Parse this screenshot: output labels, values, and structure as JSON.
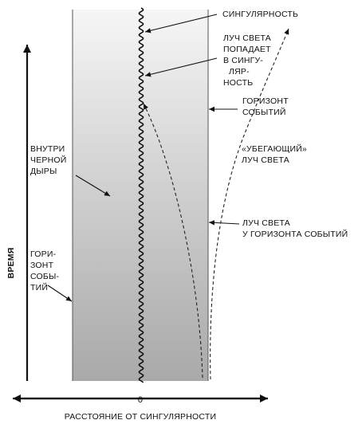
{
  "labels": {
    "singularity": "СИНГУЛЯРНОСТЬ",
    "light_into_singularity": [
      "ЛУЧ СВЕТА",
      "ПОПАДАЕТ",
      "В СИНГУ-",
      "ЛЯР-",
      "НОСТЬ"
    ],
    "event_horizon_right": [
      "ГОРИЗОНТ",
      "СОБЫТИЙ"
    ],
    "escaping_ray": [
      "«УБЕГАЮЩИЙ»",
      "ЛУЧ СВЕТА"
    ],
    "ray_at_horizon": [
      "ЛУЧ СВЕТА",
      "У ГОРИЗОНТА СОБЫТИЙ"
    ],
    "inside_black_hole": [
      "ВНУТРИ",
      "ЧЕРНОЙ",
      "ДЫРЫ"
    ],
    "event_horizon_left": [
      "ГОРИ-",
      "ЗОНТ",
      "СОБЫ-",
      "ТИЙ"
    ],
    "time_axis": "ВРЕМЯ",
    "zero": "0",
    "distance_axis": "РАССТОЯНИЕ ОТ СИНГУЛЯРНОСТИ"
  },
  "colors": {
    "region_top": "#f6f6f6",
    "region_bottom": "#a9a9a9",
    "ink": "#111111"
  }
}
